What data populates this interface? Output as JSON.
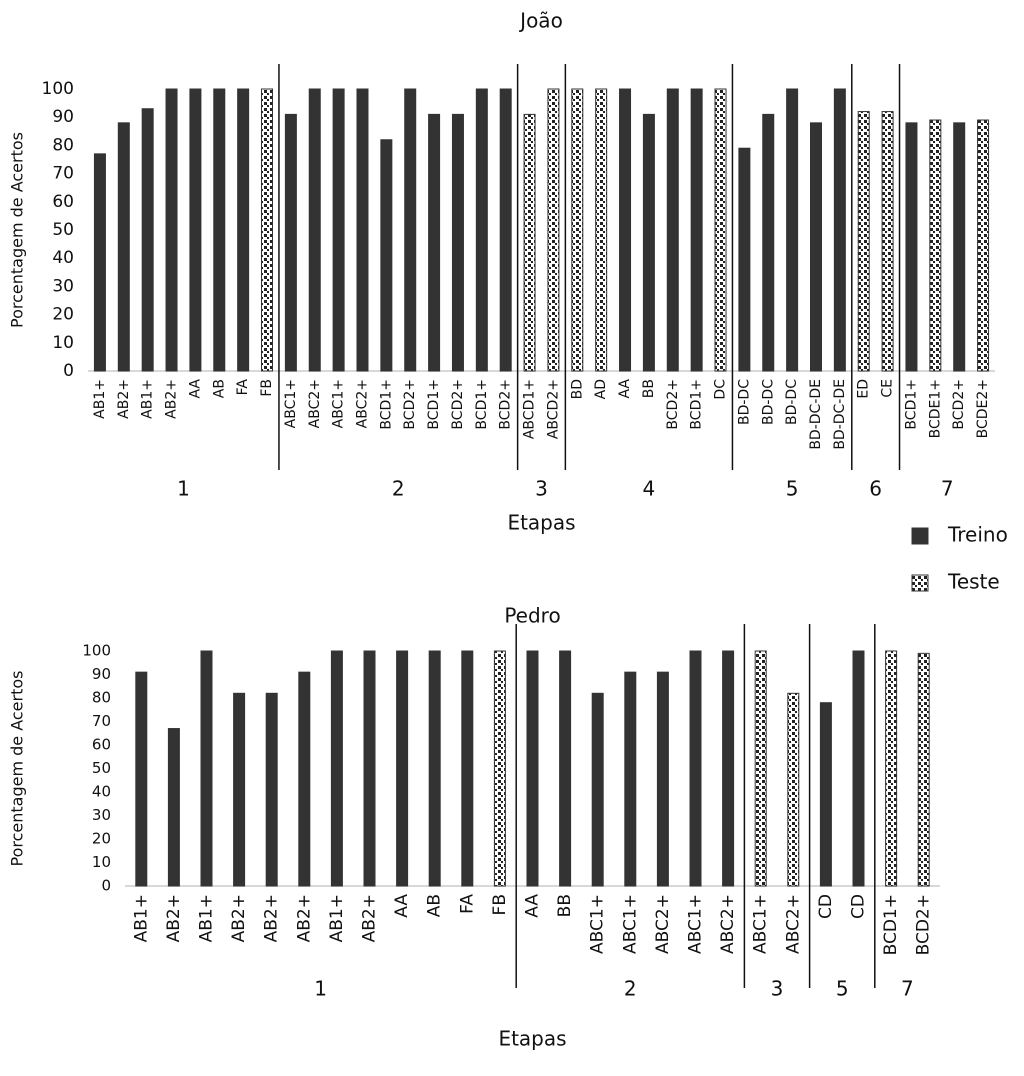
{
  "chart_data": [
    {
      "type": "bar",
      "title": "João",
      "y_label": "Porcentagem de Acertos",
      "x_label": "Etapas",
      "ylim": [
        0,
        100
      ],
      "yticks": [
        0,
        10,
        20,
        30,
        40,
        50,
        60,
        70,
        80,
        90,
        100
      ],
      "grid": false,
      "categories": [
        "AB1+",
        "AB2+",
        "AB1+",
        "AB2+",
        "AA",
        "AB",
        "FA",
        "FB",
        "ABC1+",
        "ABC2+",
        "ABC1+",
        "ABC2+",
        "BCD1+",
        "BCD2+",
        "BCD1+",
        "BCD2+",
        "BCD1+",
        "BCD2+",
        "ABCD1+",
        "ABCD2+",
        "BD",
        "AD",
        "AA",
        "BB",
        "BCD2+",
        "BCD1+",
        "DC",
        "BD-DC",
        "BD-DC",
        "BD-DC",
        "BD-DC-DE",
        "BD-DC-DE",
        "ED",
        "CE",
        "BCD1+",
        "BCDE1+",
        "BCD2+",
        "BCDE2+"
      ],
      "stages": [
        "1",
        "1",
        "1",
        "1",
        "1",
        "1",
        "1",
        "1",
        "2",
        "2",
        "2",
        "2",
        "2",
        "2",
        "2",
        "2",
        "2",
        "2",
        "3",
        "3",
        "4",
        "4",
        "4",
        "4",
        "4",
        "4",
        "4",
        "5",
        "5",
        "5",
        "5",
        "5",
        "6",
        "6",
        "7",
        "7",
        "7",
        "7"
      ],
      "series": [
        {
          "name": "Treino",
          "color": "#333333",
          "values": [
            77,
            88,
            93,
            100,
            100,
            100,
            100,
            null,
            91,
            100,
            100,
            100,
            82,
            100,
            91,
            91,
            100,
            100,
            null,
            null,
            null,
            null,
            100,
            91,
            100,
            100,
            null,
            79,
            91,
            100,
            88,
            100,
            null,
            null,
            88,
            null,
            88,
            null
          ]
        },
        {
          "name": "Teste",
          "color": "#333333",
          "pattern": "dots",
          "values": [
            null,
            null,
            null,
            null,
            null,
            null,
            null,
            100,
            null,
            null,
            null,
            null,
            null,
            null,
            null,
            null,
            null,
            null,
            91,
            100,
            100,
            100,
            null,
            null,
            null,
            null,
            100,
            null,
            null,
            null,
            null,
            null,
            92,
            92,
            null,
            89,
            null,
            89
          ]
        }
      ]
    },
    {
      "type": "bar",
      "title": "Pedro",
      "y_label": "Porcentagem de Acertos",
      "x_label": "Etapas",
      "ylim": [
        0,
        100
      ],
      "yticks": [
        0,
        10,
        20,
        30,
        40,
        50,
        60,
        70,
        80,
        90,
        100
      ],
      "grid": false,
      "categories": [
        "AB1+",
        "AB2+",
        "AB1+",
        "AB2+",
        "AB2+",
        "AB2+",
        "AB1+",
        "AB2+",
        "AA",
        "AB",
        "FA",
        "FB",
        "AA",
        "BB",
        "ABC1+",
        "ABC1+",
        "ABC2+",
        "ABC1+",
        "ABC2+",
        "ABC1+",
        "ABC2+",
        "CD",
        "CD",
        "BCD1+",
        "BCD2+"
      ],
      "stages": [
        "1",
        "1",
        "1",
        "1",
        "1",
        "1",
        "1",
        "1",
        "1",
        "1",
        "1",
        "1",
        "2",
        "2",
        "2",
        "2",
        "2",
        "2",
        "2",
        "3",
        "3",
        "5",
        "5",
        "7",
        "7"
      ],
      "series": [
        {
          "color": "#333333",
          "values": [
            91,
            67,
            100,
            82,
            82,
            91,
            100,
            100,
            100,
            100,
            100,
            null,
            100,
            100,
            82,
            91,
            91,
            100,
            100,
            null,
            null,
            78,
            100,
            null,
            null
          ]
        },
        {
          "color": "#333333",
          "pattern": "dots",
          "values": [
            null,
            null,
            null,
            null,
            null,
            null,
            null,
            null,
            null,
            null,
            null,
            100,
            null,
            null,
            null,
            null,
            null,
            null,
            null,
            100,
            82,
            null,
            null,
            100,
            99
          ]
        }
      ]
    }
  ]
}
